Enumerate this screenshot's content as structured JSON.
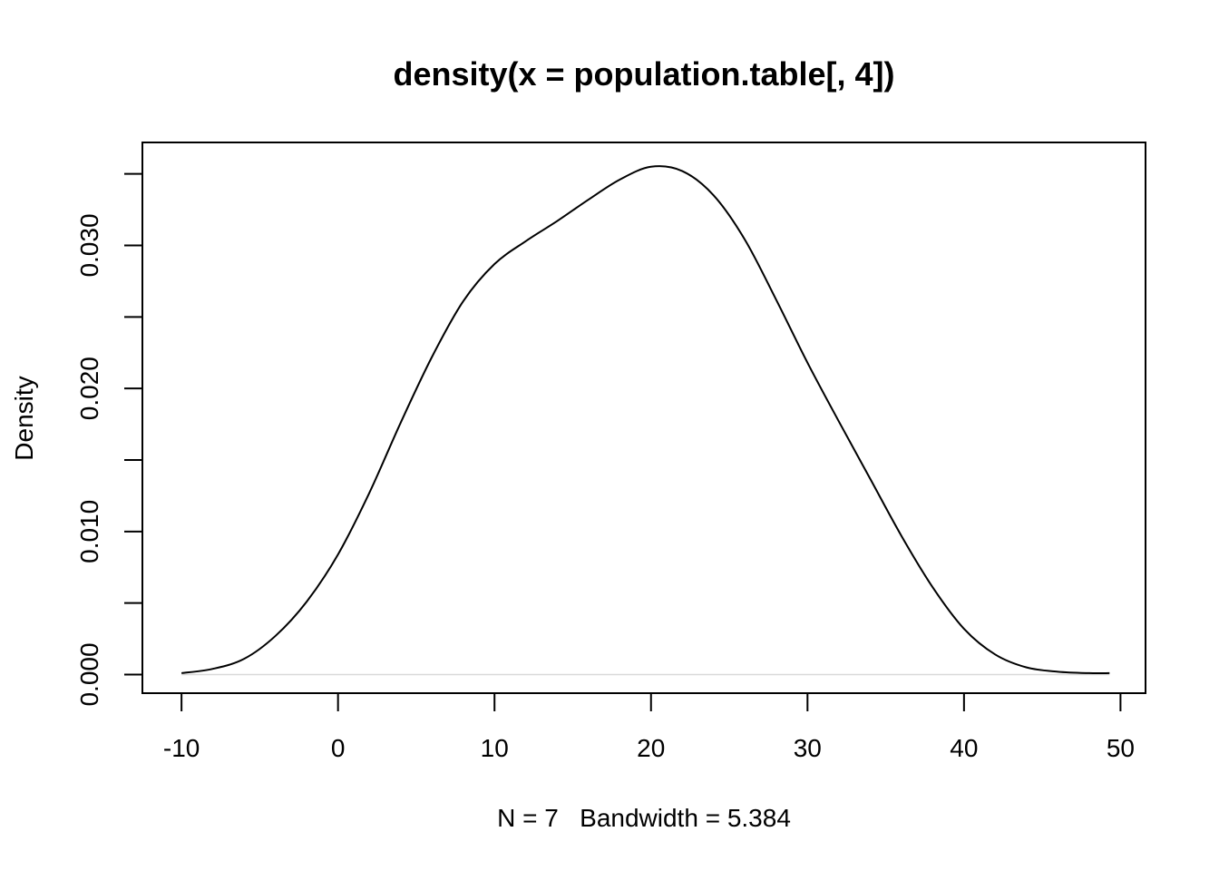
{
  "chart_data": {
    "type": "line",
    "title": "density(x = population.table[, 4])",
    "xlabel": "N = 7   Bandwidth = 5.384",
    "ylabel": "Density",
    "xlim": [
      -12.5,
      51.6
    ],
    "ylim": [
      -0.0013,
      0.0372
    ],
    "x_ticks": [
      -10,
      0,
      10,
      20,
      30,
      40,
      50
    ],
    "x_tick_labels": [
      "-10",
      "0",
      "10",
      "20",
      "30",
      "40",
      "50"
    ],
    "y_ticks": [
      0.0,
      0.005,
      0.01,
      0.015,
      0.02,
      0.025,
      0.03,
      0.035
    ],
    "y_tick_labels": [
      "0.000",
      "",
      "0.010",
      "",
      "0.020",
      "",
      "0.030",
      ""
    ],
    "grid": false,
    "baseline": 0,
    "line_color": "#000000",
    "baseline_color": "#d9d9d9",
    "series": [
      {
        "x": [
          -10,
          -8,
          -6,
          -4,
          -2,
          0,
          2,
          4,
          6,
          8,
          10,
          12,
          14,
          16,
          18,
          20,
          22,
          24,
          26,
          28,
          30,
          32,
          34,
          36,
          38,
          40,
          42,
          44,
          46,
          48,
          49.3
        ],
        "values": [
          0.0001,
          0.0004,
          0.0011,
          0.0027,
          0.0051,
          0.0084,
          0.0127,
          0.0176,
          0.0222,
          0.0261,
          0.0287,
          0.0303,
          0.0317,
          0.0332,
          0.0346,
          0.0355,
          0.0352,
          0.0335,
          0.0304,
          0.0262,
          0.0218,
          0.0177,
          0.0137,
          0.0097,
          0.0061,
          0.0032,
          0.0014,
          0.0005,
          0.0002,
          0.0001,
          0.0001
        ]
      }
    ]
  }
}
